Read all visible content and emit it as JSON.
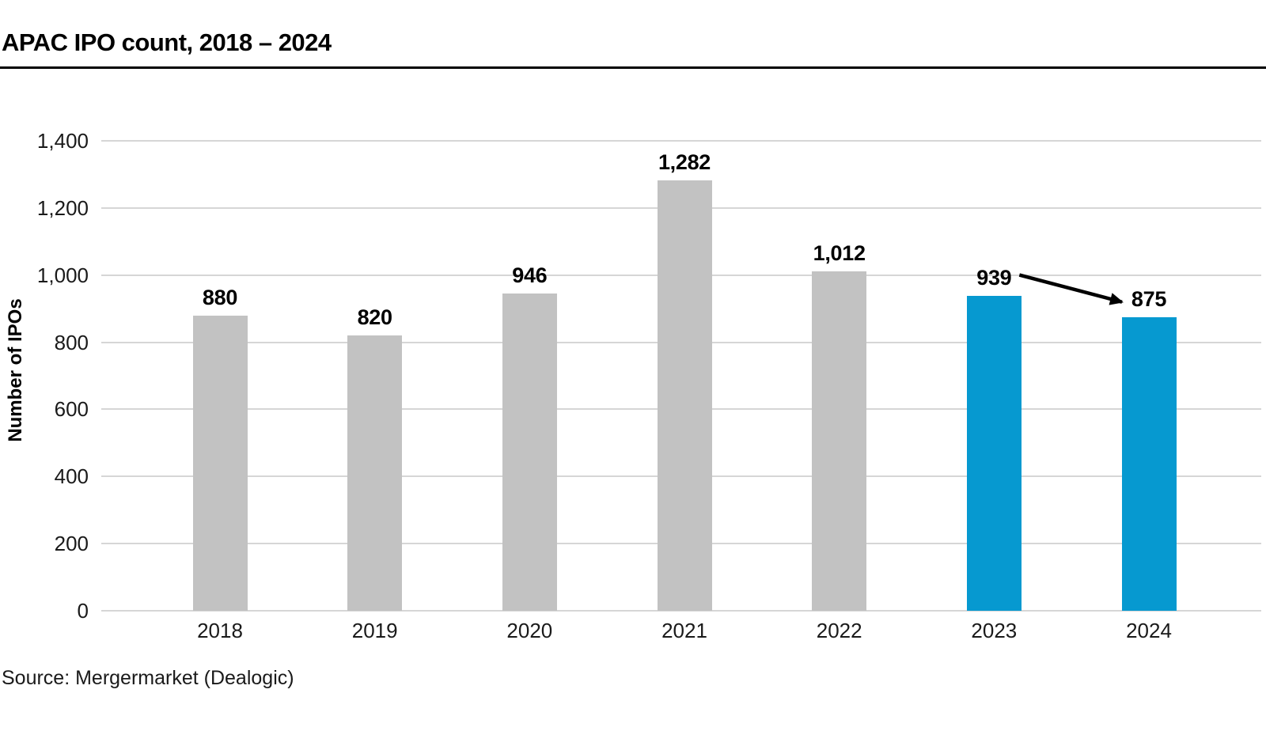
{
  "header": {
    "title": "APAC IPO count, 2018 – 2024"
  },
  "chart_data": {
    "type": "bar",
    "title": "APAC IPO count, 2018 – 2024",
    "categories": [
      "2018",
      "2019",
      "2020",
      "2021",
      "2022",
      "2023",
      "2024"
    ],
    "values": [
      880,
      820,
      946,
      1282,
      1012,
      939,
      875
    ],
    "value_labels": [
      "880",
      "820",
      "946",
      "1,282",
      "1,012",
      "939",
      "875"
    ],
    "highlighted_categories": [
      "2023",
      "2024"
    ],
    "xlabel": "",
    "ylabel": "Number of IPOs",
    "ylim": [
      0,
      1400
    ],
    "ytick_step": 200,
    "ytick_labels": [
      "0",
      "200",
      "400",
      "600",
      "800",
      "1,000",
      "1,200",
      "1,400"
    ],
    "grid": true,
    "legend_position": "none",
    "annotation": {
      "type": "arrow",
      "from_category": "2023",
      "from_value": 939,
      "to_category": "2024",
      "to_value": 875,
      "meaning": "decline from 939 to 875"
    }
  },
  "colors": {
    "bar_default": "#c2c2c2",
    "bar_highlight": "#0699d0",
    "gridline": "#d6d6d6",
    "separator": "#000000",
    "arrow": "#000000",
    "text": "#000000"
  },
  "footer": {
    "source": "Source: Mergermarket (Dealogic)"
  }
}
